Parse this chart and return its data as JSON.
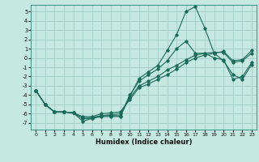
{
  "xlabel": "Humidex (Indice chaleur)",
  "bg_color": "#c5e8e0",
  "grid_color": "#a0ccc4",
  "line_color": "#1a6b5a",
  "xlim": [
    -0.5,
    23.5
  ],
  "ylim": [
    -7.7,
    5.7
  ],
  "yticks": [
    5,
    4,
    3,
    2,
    1,
    0,
    -1,
    -2,
    -3,
    -4,
    -5,
    -6,
    -7
  ],
  "xticks": [
    0,
    1,
    2,
    3,
    4,
    5,
    6,
    7,
    8,
    9,
    10,
    11,
    12,
    13,
    14,
    15,
    16,
    17,
    18,
    19,
    20,
    21,
    22,
    23
  ],
  "series": [
    {
      "x": [
        0,
        1,
        2,
        3,
        4,
        5,
        6,
        7,
        8,
        9,
        10,
        11,
        12,
        13,
        14,
        15,
        16,
        17,
        18,
        19,
        20,
        21,
        22,
        23
      ],
      "y": [
        -3.5,
        -5.0,
        -5.8,
        -5.8,
        -5.9,
        -6.8,
        -6.5,
        -6.3,
        -6.3,
        -6.3,
        -4.2,
        -2.2,
        -1.5,
        -0.8,
        0.8,
        2.5,
        5.0,
        5.5,
        3.2,
        0.5,
        -0.3,
        -1.8,
        -2.3,
        -0.7
      ]
    },
    {
      "x": [
        0,
        1,
        2,
        3,
        4,
        5,
        6,
        7,
        8,
        9,
        10,
        11,
        12,
        13,
        14,
        15,
        16,
        17,
        18,
        19,
        20,
        21,
        22,
        23
      ],
      "y": [
        -3.5,
        -5.0,
        -5.8,
        -5.8,
        -5.9,
        -6.5,
        -6.5,
        -6.2,
        -6.2,
        -6.2,
        -4.0,
        -2.5,
        -1.8,
        -1.2,
        -0.3,
        1.0,
        1.8,
        0.5,
        0.5,
        0.0,
        -0.2,
        -2.3,
        -2.0,
        -0.5
      ]
    },
    {
      "x": [
        0,
        1,
        2,
        3,
        4,
        5,
        6,
        7,
        8,
        9,
        10,
        11,
        12,
        13,
        14,
        15,
        16,
        17,
        18,
        19,
        20,
        21,
        22,
        23
      ],
      "y": [
        -3.5,
        -5.0,
        -5.8,
        -5.8,
        -5.9,
        -6.5,
        -6.4,
        -6.2,
        -6.1,
        -6.0,
        -4.3,
        -3.0,
        -2.5,
        -2.0,
        -1.3,
        -0.8,
        -0.2,
        0.3,
        0.5,
        0.6,
        0.6,
        -0.5,
        -0.3,
        0.5
      ]
    },
    {
      "x": [
        0,
        1,
        2,
        3,
        4,
        5,
        6,
        7,
        8,
        9,
        10,
        11,
        12,
        13,
        14,
        15,
        16,
        17,
        18,
        19,
        20,
        21,
        22,
        23
      ],
      "y": [
        -3.5,
        -5.0,
        -5.8,
        -5.8,
        -5.9,
        -6.3,
        -6.3,
        -6.0,
        -5.9,
        -5.8,
        -4.5,
        -3.2,
        -2.8,
        -2.3,
        -1.8,
        -1.2,
        -0.5,
        0.0,
        0.3,
        0.5,
        0.7,
        -0.3,
        -0.2,
        0.8
      ]
    }
  ]
}
